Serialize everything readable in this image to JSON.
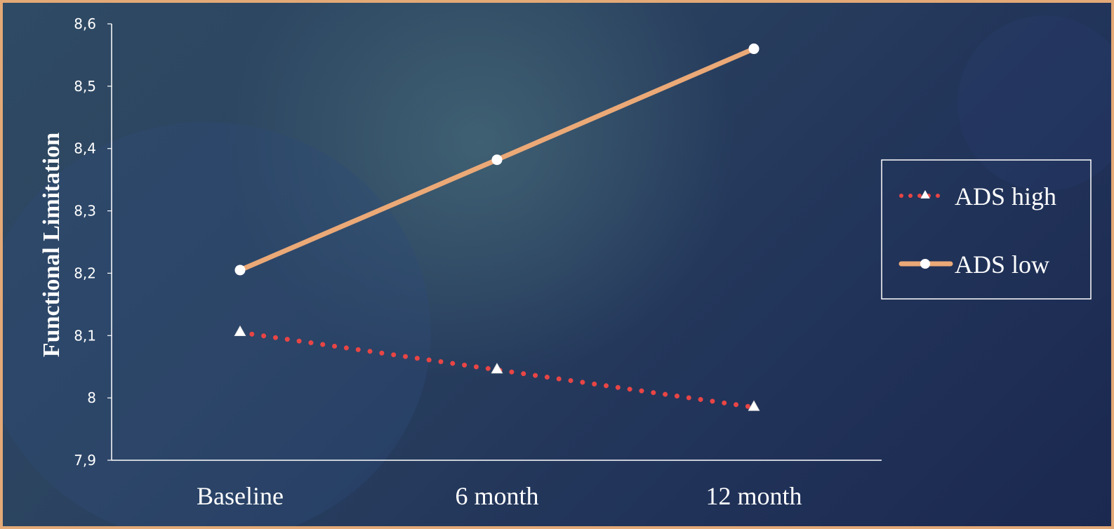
{
  "chart_data": {
    "type": "line",
    "categories": [
      "Baseline",
      "6 month",
      "12 month"
    ],
    "series": [
      {
        "name": "ADS high",
        "values": [
          8.105,
          8.045,
          7.985
        ],
        "color": "#e84545",
        "line_style": "dotted",
        "marker": "triangle"
      },
      {
        "name": "ADS low",
        "values": [
          8.205,
          8.382,
          8.56
        ],
        "color": "#eba977",
        "line_style": "solid",
        "marker": "circle"
      }
    ],
    "ylabel": "Functional Limitation",
    "xlabel": "",
    "ylim": [
      7.9,
      8.6
    ],
    "yticks": [
      "7,9",
      "8",
      "8,1",
      "8,2",
      "8,3",
      "8,4",
      "8,5",
      "8,6"
    ],
    "grid": false,
    "legend_position": "right"
  },
  "theme": {
    "frame_color": "#e3a977",
    "axis_color": "#ffffff",
    "text_color": "#ffffff"
  }
}
